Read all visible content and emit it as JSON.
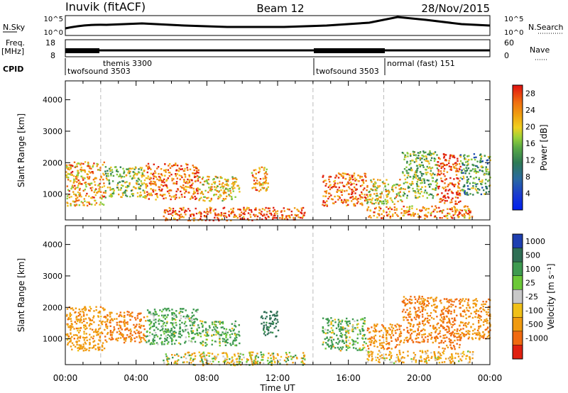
{
  "header": {
    "station": "Inuvik (fitACF)",
    "beam": "Beam 12",
    "date": "28/Nov/2015"
  },
  "aux_panels": {
    "nsky_label": "N.Sky",
    "nsky_ticks": [
      "10^5",
      "10^0"
    ],
    "nsearch_label": "N.Search",
    "nsearch_ticks": [
      "10^5",
      "10^0"
    ],
    "freq_label": "Freq.",
    "freq_unit": "[MHz]",
    "freq_ticks": [
      "18",
      "8"
    ],
    "nave_label": "Nave",
    "nave_ticks": [
      "60",
      "0"
    ],
    "cpid_label": "CPID",
    "cpid_segments": [
      {
        "name": "twofsound 3503",
        "start": 0,
        "end": 2
      },
      {
        "name": "themis 3300",
        "start": 2,
        "end": 14
      },
      {
        "name": "twofsound 3503",
        "start": 14,
        "end": 18
      },
      {
        "name": "normal (fast) 151",
        "start": 18,
        "end": 24
      }
    ]
  },
  "time_axis": {
    "label": "Time UT",
    "ticks": [
      "00:00",
      "04:00",
      "08:00",
      "12:00",
      "16:00",
      "20:00",
      "00:00"
    ]
  },
  "chart_data": [
    {
      "type": "heatmap",
      "name": "power",
      "ylabel": "Slant Range [km]",
      "xlim": [
        0,
        24
      ],
      "ylim": [
        180,
        4600
      ],
      "yticks": [
        "1000",
        "2000",
        "3000",
        "4000"
      ],
      "colorbar_label": "Power [dB]",
      "colorbar_ticks": [
        "4",
        "8",
        "12",
        "16",
        "20",
        "24",
        "28"
      ],
      "colorbar_range": [
        0,
        30
      ],
      "colors": [
        "#0020f0",
        "#2050b0",
        "#2e7a55",
        "#4fa04a",
        "#8ccc3a",
        "#f0c020",
        "#f09a10",
        "#f06a10",
        "#e02010"
      ],
      "dashed_marks_ut": [
        2,
        14,
        18
      ],
      "regions": [
        {
          "x": [
            0,
            2.2
          ],
          "y": [
            650,
            2050
          ],
          "value": 21
        },
        {
          "x": [
            2.2,
            4.5
          ],
          "y": [
            900,
            1900
          ],
          "value": 15
        },
        {
          "x": [
            4.5,
            7.5
          ],
          "y": [
            850,
            2000
          ],
          "value": 24
        },
        {
          "x": [
            7.5,
            9.8
          ],
          "y": [
            800,
            1600
          ],
          "value": 19
        },
        {
          "x": [
            10.5,
            11.5
          ],
          "y": [
            1100,
            1900
          ],
          "value": 22
        },
        {
          "x": [
            14.5,
            17
          ],
          "y": [
            650,
            1700
          ],
          "value": 25
        },
        {
          "x": [
            17,
            19
          ],
          "y": [
            700,
            1500
          ],
          "value": 18
        },
        {
          "x": [
            19,
            21
          ],
          "y": [
            900,
            2400
          ],
          "value": 14
        },
        {
          "x": [
            21,
            22.3
          ],
          "y": [
            700,
            2300
          ],
          "value": 27
        },
        {
          "x": [
            22.3,
            24
          ],
          "y": [
            1000,
            2300
          ],
          "value": 12
        },
        {
          "x": [
            5.5,
            13.5
          ],
          "y": [
            180,
            600
          ],
          "value": 26
        },
        {
          "x": [
            17,
            23
          ],
          "y": [
            250,
            650
          ],
          "value": 23
        }
      ]
    },
    {
      "type": "heatmap",
      "name": "velocity",
      "ylabel": "Slant Range [km]",
      "xlim": [
        0,
        24
      ],
      "ylim": [
        180,
        4600
      ],
      "yticks": [
        "1000",
        "2000",
        "3000",
        "4000"
      ],
      "colorbar_label": "Velocity [m s⁻¹]",
      "colorbar_ticks": [
        "1000",
        "500",
        "100",
        "25",
        "-25",
        "-100",
        "-500",
        "-1000"
      ],
      "colors": [
        "#1e3fb0",
        "#2f6f55",
        "#3e9a50",
        "#6cc838",
        "#c8c8c8",
        "#f0c018",
        "#f09a10",
        "#f06a10",
        "#e02010"
      ],
      "dashed_marks_ut": [
        2,
        14,
        18
      ],
      "regions": [
        {
          "x": [
            0,
            2.2
          ],
          "y": [
            650,
            2050
          ],
          "value": -300
        },
        {
          "x": [
            2.2,
            4.5
          ],
          "y": [
            900,
            1900
          ],
          "value": -500
        },
        {
          "x": [
            4.5,
            7.5
          ],
          "y": [
            850,
            2000
          ],
          "value": 200
        },
        {
          "x": [
            7.5,
            9.8
          ],
          "y": [
            800,
            1600
          ],
          "value": 150
        },
        {
          "x": [
            11,
            12
          ],
          "y": [
            1100,
            1900
          ],
          "value": 700
        },
        {
          "x": [
            14.5,
            17
          ],
          "y": [
            650,
            1700
          ],
          "value": 120
        },
        {
          "x": [
            17,
            19
          ],
          "y": [
            700,
            1500
          ],
          "value": -400
        },
        {
          "x": [
            19,
            21
          ],
          "y": [
            900,
            2400
          ],
          "value": -500
        },
        {
          "x": [
            21,
            22.3
          ],
          "y": [
            700,
            2300
          ],
          "value": -600
        },
        {
          "x": [
            22.3,
            24
          ],
          "y": [
            1000,
            2300
          ],
          "value": -400
        },
        {
          "x": [
            5.5,
            13.5
          ],
          "y": [
            180,
            600
          ],
          "value": -50
        },
        {
          "x": [
            17,
            23
          ],
          "y": [
            250,
            650
          ],
          "value": -200
        }
      ]
    }
  ]
}
